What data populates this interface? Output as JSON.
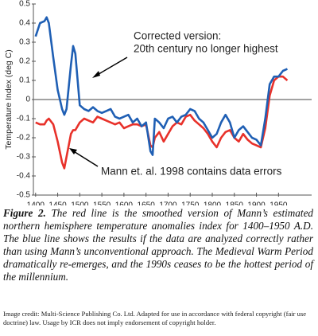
{
  "chart_data": {
    "type": "line",
    "ylabel": "Temperature Index (deg C)",
    "xlim": [
      1395,
      2025
    ],
    "ylim": [
      -0.5,
      0.5
    ],
    "xticks": [
      1400,
      1450,
      1500,
      1550,
      1600,
      1650,
      1700,
      1750,
      1800,
      1850,
      1900,
      1950
    ],
    "yticks": [
      0.5,
      0.4,
      0.3,
      0.2,
      0.1,
      0,
      -0.1,
      -0.2,
      -0.3,
      -0.4,
      -0.5
    ],
    "x": [
      1400,
      1410,
      1420,
      1425,
      1430,
      1440,
      1450,
      1460,
      1465,
      1470,
      1480,
      1485,
      1490,
      1500,
      1510,
      1520,
      1530,
      1540,
      1550,
      1560,
      1570,
      1580,
      1590,
      1600,
      1610,
      1620,
      1630,
      1640,
      1650,
      1660,
      1665,
      1670,
      1680,
      1690,
      1700,
      1710,
      1720,
      1730,
      1740,
      1750,
      1760,
      1770,
      1780,
      1790,
      1800,
      1810,
      1820,
      1830,
      1840,
      1850,
      1860,
      1870,
      1880,
      1890,
      1900,
      1910,
      1920,
      1930,
      1940,
      1950,
      1960,
      1970
    ],
    "series": [
      {
        "color": "#1f5fb4",
        "values": [
          0.33,
          0.4,
          0.41,
          0.43,
          0.4,
          0.22,
          0.05,
          -0.05,
          -0.08,
          -0.05,
          0.18,
          0.28,
          0.24,
          -0.03,
          -0.05,
          -0.06,
          -0.04,
          -0.06,
          -0.07,
          -0.06,
          -0.05,
          -0.09,
          -0.1,
          -0.09,
          -0.08,
          -0.12,
          -0.1,
          -0.14,
          -0.12,
          -0.27,
          -0.29,
          -0.1,
          -0.12,
          -0.15,
          -0.1,
          -0.09,
          -0.12,
          -0.09,
          -0.08,
          -0.05,
          -0.06,
          -0.1,
          -0.12,
          -0.16,
          -0.2,
          -0.18,
          -0.12,
          -0.08,
          -0.12,
          -0.2,
          -0.16,
          -0.14,
          -0.17,
          -0.2,
          -0.21,
          -0.24,
          -0.1,
          0.08,
          0.12,
          0.12,
          0.15,
          0.16
        ]
      },
      {
        "color": "#e8312a",
        "values": [
          -0.12,
          -0.13,
          -0.13,
          -0.11,
          -0.1,
          -0.13,
          -0.22,
          -0.33,
          -0.36,
          -0.3,
          -0.18,
          -0.16,
          -0.16,
          -0.12,
          -0.1,
          -0.11,
          -0.12,
          -0.09,
          -0.1,
          -0.11,
          -0.12,
          -0.13,
          -0.12,
          -0.15,
          -0.14,
          -0.13,
          -0.13,
          -0.14,
          -0.13,
          -0.24,
          -0.25,
          -0.2,
          -0.17,
          -0.22,
          -0.18,
          -0.14,
          -0.12,
          -0.13,
          -0.09,
          -0.08,
          -0.11,
          -0.13,
          -0.15,
          -0.18,
          -0.22,
          -0.25,
          -0.2,
          -0.17,
          -0.16,
          -0.2,
          -0.22,
          -0.18,
          -0.21,
          -0.23,
          -0.24,
          -0.25,
          -0.15,
          0.02,
          0.1,
          0.12,
          0.12,
          0.1
        ]
      }
    ],
    "annotations": [
      {
        "lines": [
          "Corrected version:",
          "20th century no longer highest"
        ]
      },
      {
        "lines": [
          "Mann et. al. 1998 contains data errors"
        ]
      }
    ]
  },
  "caption": {
    "label": "Figure 2.",
    "text": "The red line is the smoothed version of Mann’s estimated northern hemisphere temperature anomalies index for 1400–1950 A.D. The blue line shows the results if the data are analyzed correctly rather than using Mann’s unconventional approach. The Medieval Warm Period dramatically re-emerges, and the 1990s ceases to be the hottest period of the millennium."
  },
  "credit": "Image credit: Multi-Science Publishing Co. Ltd. Adapted for use in accordance with federal copyright (fair use doctrine) law. Usage by ICR does not imply endorsement of copyright holder."
}
